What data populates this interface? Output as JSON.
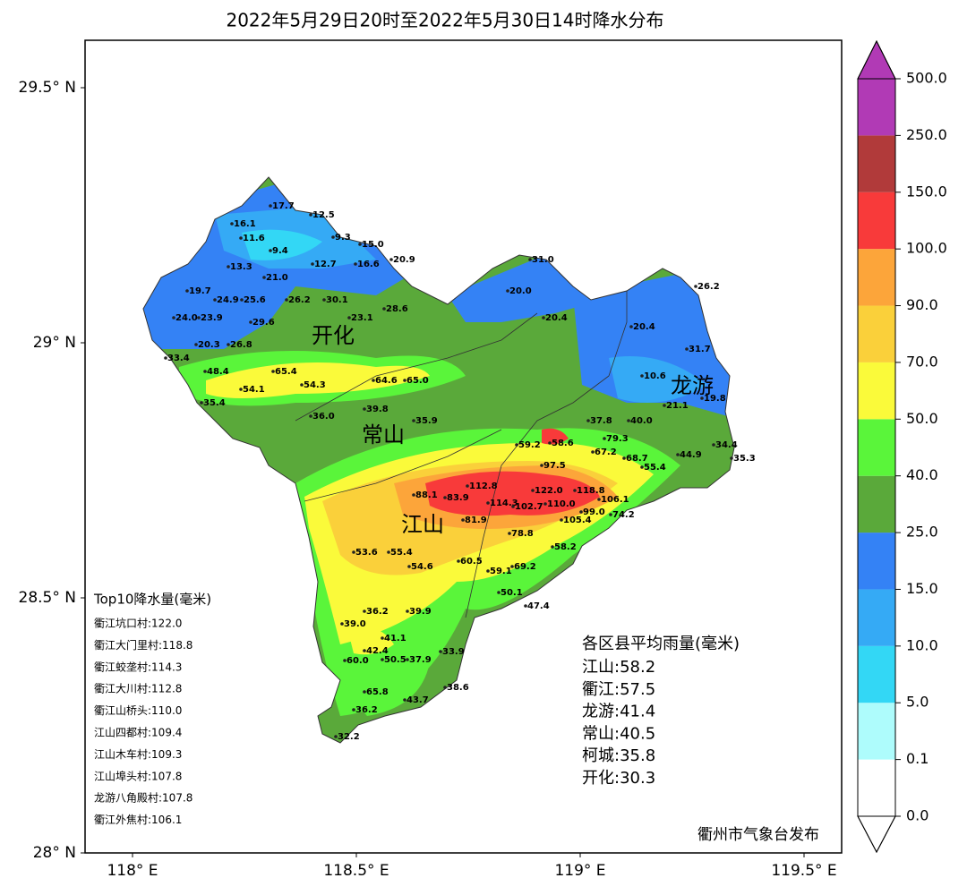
{
  "title": "2022年5月29日20时至2022年5月30日14时降水分布",
  "map": {
    "xlim": [
      117.894,
      119.584
    ],
    "ylim": [
      28.0,
      29.593
    ],
    "xticks": [
      {
        "value": 118,
        "label": "118° E"
      },
      {
        "value": 118.5,
        "label": "118.5° E"
      },
      {
        "value": 119,
        "label": "119° E"
      },
      {
        "value": 119.5,
        "label": "119.5° E"
      }
    ],
    "yticks": [
      {
        "value": 28,
        "label": "28° N"
      },
      {
        "value": 28.5,
        "label": "28.5° N"
      },
      {
        "value": 29,
        "label": "29° N"
      },
      {
        "value": 29.5,
        "label": "29.5° N"
      }
    ],
    "districts": [
      "开化",
      "常山",
      "江山",
      "龙游"
    ],
    "stations": {
      "values": [
        17.7,
        12.5,
        16.1,
        11.6,
        9.4,
        9.3,
        15.0,
        20.9,
        13.3,
        21.0,
        12.7,
        16.6,
        19.7,
        24.9,
        25.6,
        26.2,
        30.1,
        24.0,
        23.9,
        29.6,
        23.1,
        28.6,
        20.3,
        26.8,
        33.4,
        48.4,
        65.4,
        54.3,
        54.1,
        35.4,
        64.6,
        65.0,
        39.8,
        35.9,
        36.0,
        20.0,
        20.4,
        31.0,
        20.4,
        10.6,
        26.2,
        31.7,
        19.8,
        59.2,
        58.6,
        79.3,
        97.5,
        112.8,
        122.0,
        118.8,
        110.0,
        114.3,
        102.7,
        99.0,
        105.4,
        106.1,
        88.1,
        83.9,
        81.9,
        78.8,
        58.2,
        60.5,
        59.1,
        69.2,
        50.1,
        47.4,
        55.4,
        54.6,
        53.6,
        36.2,
        39.9,
        39.0,
        41.1,
        42.4,
        60.0,
        50.5,
        37.9,
        33.9,
        38.6,
        43.7,
        65.8,
        36.2,
        32.2,
        74.2,
        67.2,
        68.7,
        55.4,
        44.9,
        34.4,
        35.3,
        21.1,
        40.0,
        37.8
      ],
      "value_labels": [
        "17.7",
        "12.5",
        "16.1",
        "11.6",
        "9.4",
        "9.3",
        "15.0",
        "20.9",
        "13.3",
        "21.0",
        "12.7",
        "16.6",
        "19.7",
        "24.9",
        "25.6",
        "26.2",
        "30.1",
        "24.0",
        "23.9",
        "29.6",
        "23.1",
        "28.6",
        "20.3",
        "26.8",
        "33.4",
        "48.4",
        "65.4",
        "54.3",
        "54.1",
        "35.4",
        "64.6",
        "65.0",
        "39.8",
        "35.9",
        "36.0",
        "20.0",
        "20.4",
        "31.0",
        "20.4",
        "10.6",
        "26.2",
        "31.7",
        "19.8",
        "59.2",
        "58.6",
        "79.3",
        "97.5",
        "112.8",
        "122.0",
        "118.8",
        "110.0",
        "114.3",
        "102.7",
        "99.0",
        "105.4",
        "106.1",
        "88.1",
        "83.9",
        "81.9",
        "78.8",
        "58.2",
        "60.5",
        "59.1",
        "69.2",
        "50.1",
        "47.4",
        "55.4",
        "54.6",
        "53.6",
        "36.2",
        "39.9",
        "39.0",
        "41.1",
        "42.4",
        "60.0",
        "50.5",
        "37.9",
        "33.9",
        "38.6",
        "43.7",
        "65.8",
        "36.2",
        "32.2",
        "74.2",
        "67.2",
        "68.7",
        "55.4",
        "44.9",
        "34.4",
        "35.3",
        "21.1",
        "40.0",
        "37.8"
      ]
    }
  },
  "colorbar": {
    "levels": [
      {
        "value": 0,
        "label": "0.0"
      },
      {
        "value": 0.1,
        "label": "0.1"
      },
      {
        "value": 5,
        "label": "5.0"
      },
      {
        "value": 10,
        "label": "10.0"
      },
      {
        "value": 15,
        "label": "15.0"
      },
      {
        "value": 25,
        "label": "25.0"
      },
      {
        "value": 40,
        "label": "40.0"
      },
      {
        "value": 50,
        "label": "50.0"
      },
      {
        "value": 70,
        "label": "70.0"
      },
      {
        "value": 90,
        "label": "90.0"
      },
      {
        "value": 100,
        "label": "100.0"
      },
      {
        "value": 150,
        "label": "150.0"
      },
      {
        "value": 250,
        "label": "250.0"
      },
      {
        "value": 500,
        "label": "500.0"
      }
    ],
    "colors": [
      "#ffffff",
      "#aefcfc",
      "#33d7f5",
      "#35aaf5",
      "#3482f5",
      "#5aa93a",
      "#5af53a",
      "#fafa3a",
      "#fad03a",
      "#fca53a",
      "#f83a3a",
      "#b13a3a",
      "#b13ab5"
    ],
    "under_color": "#ffffff",
    "over_color": "#b13ab5"
  },
  "top10": {
    "title": "Top10降水量(毫米)",
    "items": [
      "衢江坑口村:122.0",
      "衢江大门里村:118.8",
      "衢江蛟垄村:114.3",
      "衢江大川村:112.8",
      "衢江山桥头:110.0",
      "江山四都村:109.4",
      "江山木车村:109.3",
      "江山埠头村:107.8",
      "龙游八角殿村:107.8",
      "衢江外焦村:106.1"
    ]
  },
  "averages": {
    "title": "各区县平均雨量(毫米)",
    "items": [
      "江山:58.2",
      "衢江:57.5",
      "龙游:41.4",
      "常山:40.5",
      "柯城:35.8",
      "开化:30.3"
    ]
  },
  "publisher": "衢州市气象台发布"
}
